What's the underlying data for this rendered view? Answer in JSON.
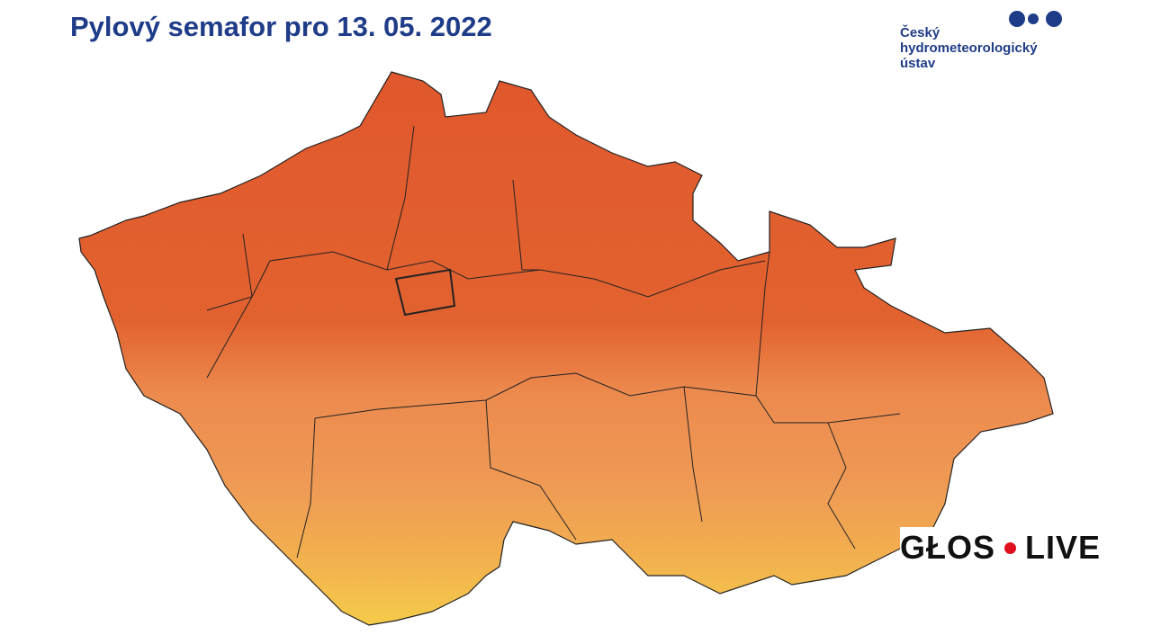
{
  "header": {
    "title": "Pylový semafor pro 13. 05. 2022"
  },
  "logo": {
    "lines": [
      "Český",
      "hydrometeorologický",
      "ústav"
    ]
  },
  "watermark": {
    "left": "GŁOS",
    "right": "LIVE"
  }
}
